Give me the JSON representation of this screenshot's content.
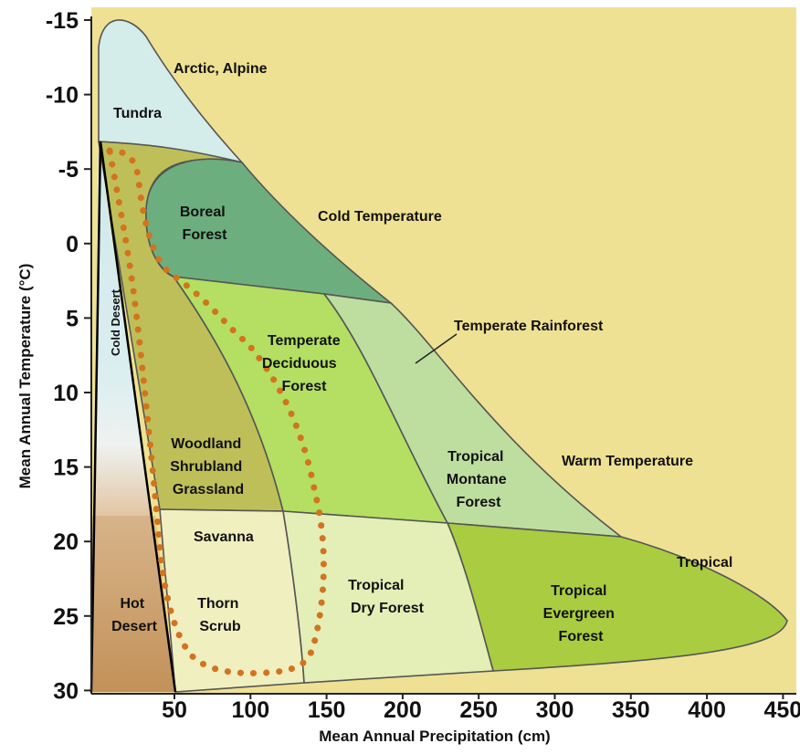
{
  "axes": {
    "y_title": "Mean Annual Temperature (°C)",
    "x_title": "Mean Annual Precipitation (cm)",
    "y_ticks": [
      "-15",
      "-10",
      "-5",
      "0",
      "5",
      "10",
      "15",
      "20",
      "25",
      "30"
    ],
    "x_ticks": [
      "50",
      "100",
      "150",
      "200",
      "250",
      "300",
      "350",
      "400",
      "450"
    ]
  },
  "zones": {
    "arctic": "Arctic, Alpine",
    "cold": "Cold Temperature",
    "warm": "Warm Temperature",
    "tropical": "Tropical",
    "temperate_rainforest": "Temperate Rainforest"
  },
  "biomes": {
    "tundra": "Tundra",
    "boreal": [
      "Boreal",
      "Forest"
    ],
    "cold_desert": "Cold Desert",
    "temperate_deciduous": [
      "Temperate",
      "Deciduous",
      "Forest"
    ],
    "woodland": [
      "Woodland",
      "Shrubland",
      "Grassland"
    ],
    "tropical_montane": [
      "Tropical",
      "Montane",
      "Forest"
    ],
    "savanna": "Savanna",
    "thorn_scrub": [
      "Thorn",
      "Scrub"
    ],
    "hot_desert": [
      "Hot",
      "Desert"
    ],
    "tropical_dry": [
      "Tropical",
      "Dry Forest"
    ],
    "tropical_evergreen": [
      "Tropical",
      "Evergreen",
      "Forest"
    ]
  },
  "colors": {
    "background": "#efe193",
    "tundra": "#d4ecea",
    "boreal": "#6dae7e",
    "woodland": "#bfbf5a",
    "temperate_deciduous": "#b4df62",
    "temperate_rainforest": "#bedea0",
    "savanna": "#f0efc0",
    "tropical_dry": "#e3efb6",
    "tropical_evergreen": "#a9cc41",
    "hot_desert": "#c4915a",
    "dotted_line": "#d4731e"
  }
}
